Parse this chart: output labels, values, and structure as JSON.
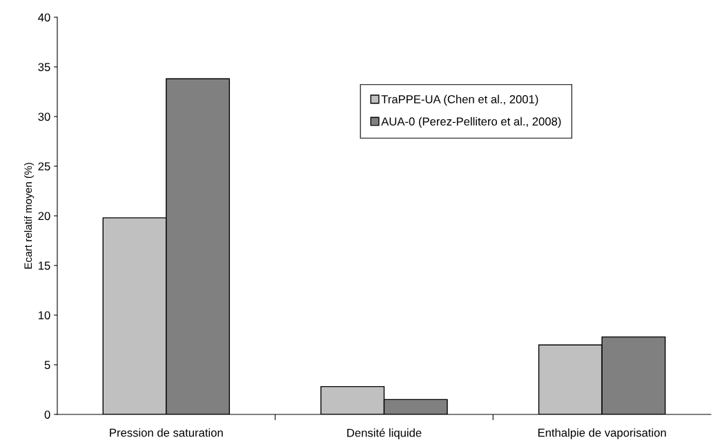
{
  "chart_data": {
    "type": "bar",
    "ylabel": "Ecart relatif moyen (%)",
    "categories": [
      "Pression de saturation",
      "Densité liquide",
      "Enthalpie de vaporisation"
    ],
    "series": [
      {
        "name": "TraPPE-UA (Chen et al., 2001)",
        "color": "#c0c0c0",
        "values": [
          19.8,
          2.8,
          7.0
        ]
      },
      {
        "name": "AUA-0 (Perez-Pellitero et al., 2008)",
        "color": "#808080",
        "values": [
          33.8,
          1.5,
          7.8
        ]
      }
    ],
    "ylim": [
      0,
      40
    ],
    "yticks": [
      0,
      5,
      10,
      15,
      20,
      25,
      30,
      35,
      40
    ],
    "grid": false,
    "legend": "top right"
  }
}
